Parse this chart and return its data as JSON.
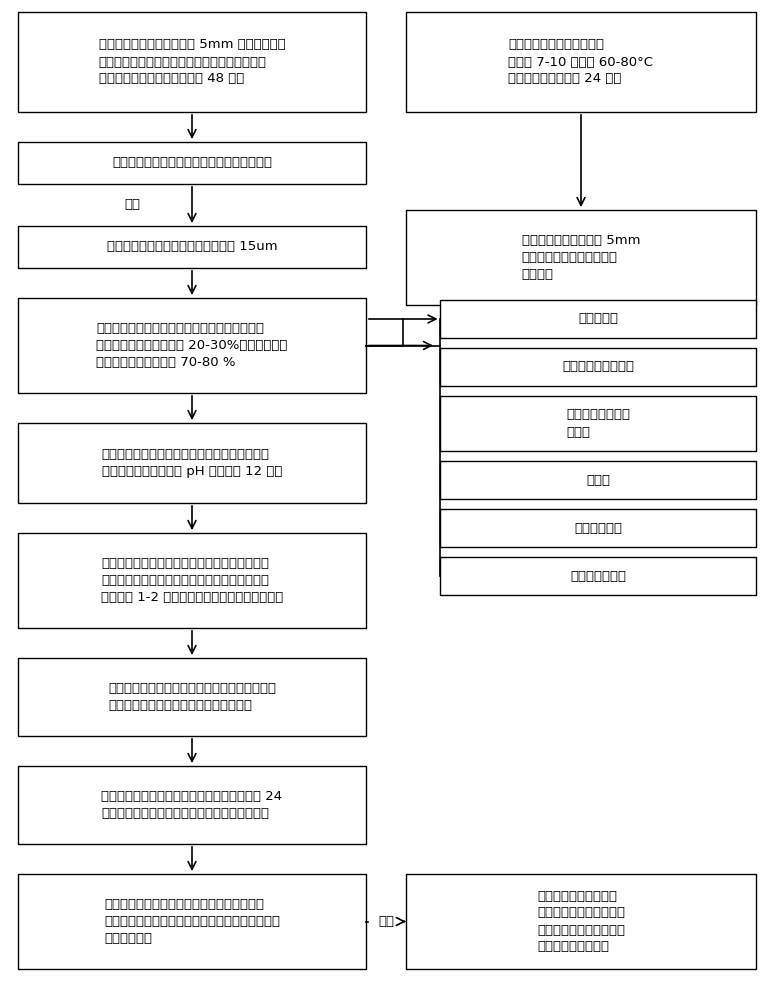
{
  "bg_color": "#ffffff",
  "box_color": "#ffffff",
  "box_edge_color": "#000000",
  "arrow_color": "#000000",
  "left_boxes": [
    {
      "id": "L1",
      "text": "将废弃玻璃进行粉碎，通过 5mm 方孔筛，去除\n废弃玻璃中杂质与不规则颗粒。放入球磨机球磨\n得到磨细废弃玻璃粉末，放置 48 小时"
    },
    {
      "id": "L2",
      "text": "激光粒度仪检测磨细废弃玻璃粉末颗粒的尺寸"
    },
    {
      "id": "L3",
      "text": "控制磨细废弃玻璃粉末平均粒径小于 15um"
    },
    {
      "id": "L4",
      "text": "确定无机聚合物淤泥固化材料中各个组分用量，\n粉煤灰占胶凝材料用量的 20-30%，磨细废弃玻\n璃粉占胶凝材料用量的 70-80 %"
    },
    {
      "id": "L5",
      "text": "将氢氧化钠与焦亚硫酸钠溶解在拌和水中，成为\n均一拌和水溶液，溶液 pH 值控制在 12 以上"
    },
    {
      "id": "L6",
      "text": "将定量粉煤灰、磨细废弃玻璃粉、废弃聚丙烯地\n毯纤维搅拌，加入含氢氧化钠与焦亚硫酸钠拌和\n水，拌合 1-2 小时，去除无机聚合物浆体中气泡"
    },
    {
      "id": "L7",
      "text": "在无机聚合物浆体中加入烘干淤泥，继续搅拌几\n分钟，形成均一的无机聚合物淤泥浆体。"
    },
    {
      "id": "L8",
      "text": "无机聚合物淤泥浆体浇筑到试模中，室内放置 24\n小时后，放入标准养护室养护到规定的测试龄期"
    },
    {
      "id": "L9",
      "text": "测定无机聚合物固化淤泥后形成的固结体抗压\n强度、抗折强度、干燥收缩、碱硅酸反应膨胀值、\n重金属浸出量"
    }
  ],
  "right_top_boxes": [
    {
      "id": "R1",
      "text": "将淤泥进行充分搅拌，在露\n天放置 7-10 天后在 60-80°C\n温度下进行脱水烘干 24 小时"
    },
    {
      "id": "R2",
      "text": "烘干后淤泥粉碎并通过 5mm\n方孔筛，测定淤泥中的重金\n属浸出量"
    }
  ],
  "right_mid_boxes": [
    {
      "id": "RM1",
      "text": "粉煤灰用量"
    },
    {
      "id": "RM2",
      "text": "磨细废弃玻璃粉用量"
    },
    {
      "id": "RM3",
      "text": "废弃聚丙烯地毯纤\n维用量"
    },
    {
      "id": "RM4",
      "text": "水胶比"
    },
    {
      "id": "RM5",
      "text": "氢氧化钠用量"
    },
    {
      "id": "RM6",
      "text": "焦亚硫酸钠用量"
    }
  ],
  "bottom_right_box": {
    "id": "BR",
    "text": "无机聚合物固化淤泥后\n形成固结体的力学性能、\n碱硅酸反应膨胀、重金属\n浸出量满足设计要求"
  },
  "satisfy_label_top": "满足",
  "satisfy_label_bottom": "满足"
}
